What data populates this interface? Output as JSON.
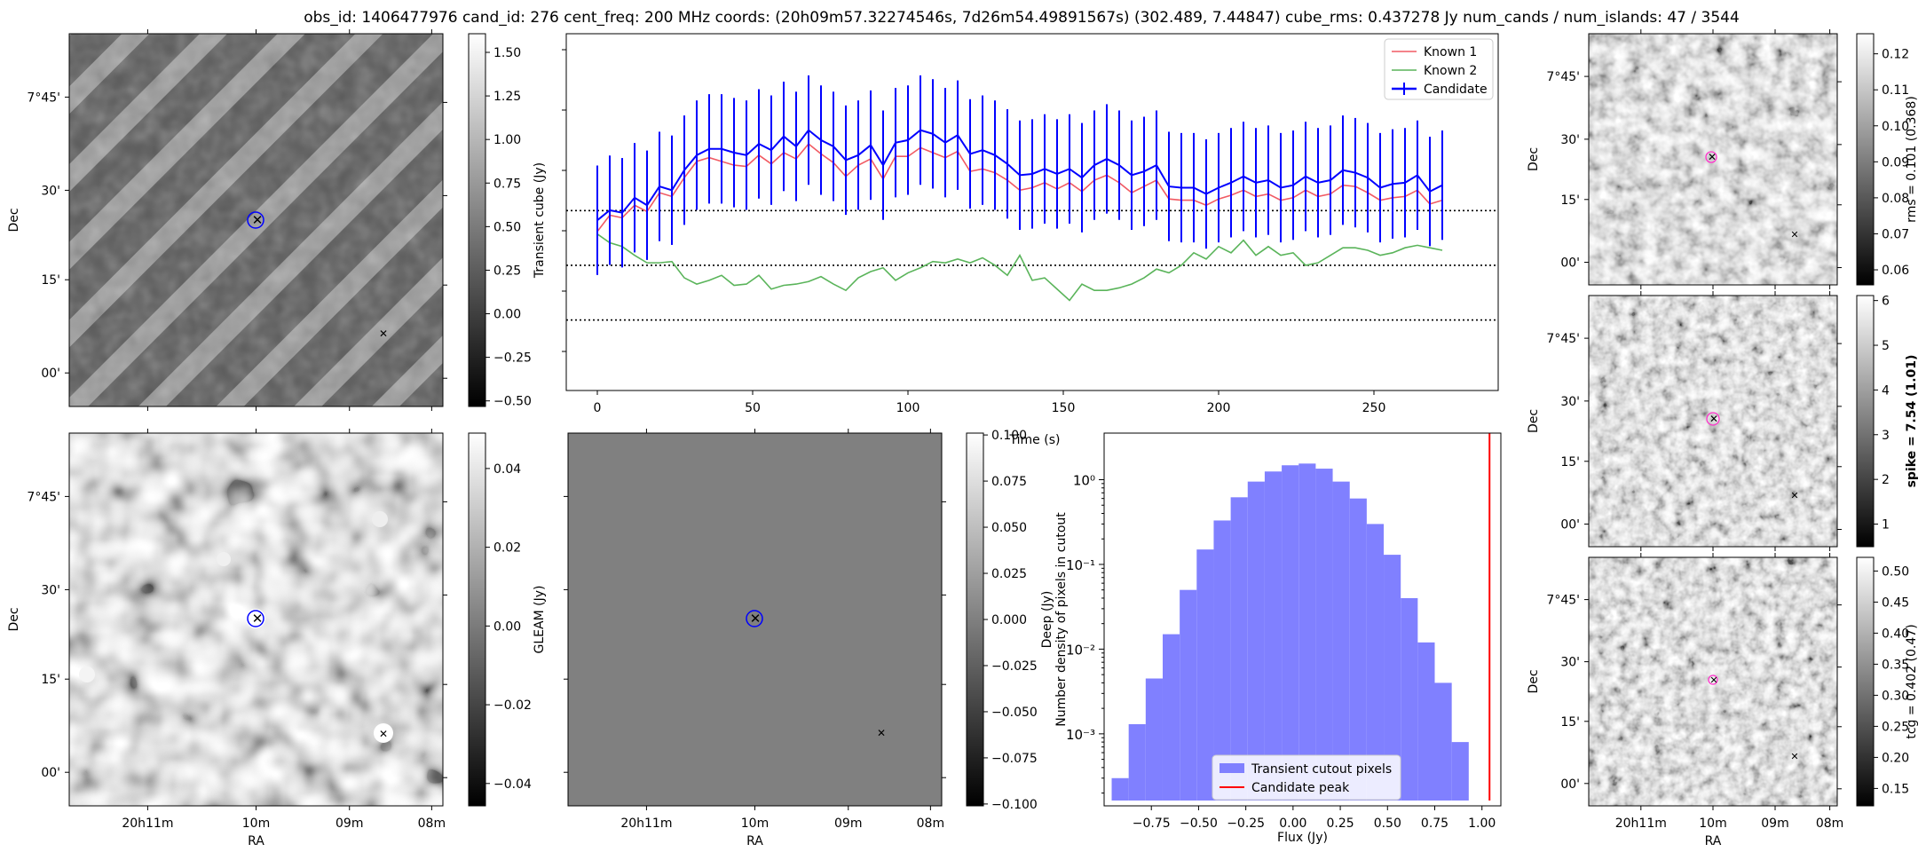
{
  "title": "obs_id: 1406477976 cand_id: 276 cent_freq: 200 MHz coords: (20h09m57.32274546s, 7d26m54.49891567s) (302.489, 7.44847) cube_rms: 0.437278 Jy num_cands / num_islands: 47 / 3544",
  "colors": {
    "candidate": "#0000ff",
    "known1": "#f05a64",
    "known2": "#5ab45a",
    "cand_marker": "#ff0000",
    "green_marker": "#008000",
    "hist": "#8080ff",
    "peak": "#ff0000"
  },
  "sky": {
    "ra_ticks": [
      "20h11m",
      "10m",
      "09m",
      "08m"
    ],
    "ra_label": "RA",
    "dec_ticks": [
      "7°45'",
      "30'",
      "15'",
      "00'"
    ],
    "dec_label": "Dec"
  },
  "panels": {
    "transient_image": {
      "colorbar": {
        "label": "Transient cube (Jy)",
        "ticks": [
          "1.50",
          "1.25",
          "1.00",
          "0.75",
          "0.50",
          "0.25",
          "0.00",
          "−0.25",
          "−0.50"
        ]
      }
    },
    "gleam_image": {
      "colorbar": {
        "label": "GLEAM (Jy)",
        "ticks": [
          "0.04",
          "0.02",
          "0.00",
          "−0.02",
          "−0.04"
        ]
      }
    },
    "deep_image": {
      "colorbar": {
        "label": "Deep (Jy)",
        "ticks": [
          "0.100",
          "0.075",
          "0.050",
          "0.025",
          "0.000",
          "−0.025",
          "−0.050",
          "−0.075",
          "−0.100"
        ]
      }
    },
    "rms_image": {
      "colorbar": {
        "label": "rms = 0.101 (0.368)",
        "ticks": [
          "0.12",
          "0.11",
          "0.10",
          "0.09",
          "0.08",
          "0.07",
          "0.06"
        ]
      }
    },
    "spike_image": {
      "colorbar": {
        "label": "spike = 7.54 (1.01)",
        "ticks": [
          "6",
          "5",
          "4",
          "3",
          "2",
          "1"
        ]
      }
    },
    "tcg_image": {
      "colorbar": {
        "label": "tcg = 0.402 (0.47)",
        "ticks": [
          "0.50",
          "0.45",
          "0.40",
          "0.35",
          "0.30",
          "0.25",
          "0.20",
          "0.15"
        ]
      }
    }
  },
  "chart_data": [
    {
      "type": "line",
      "title": "",
      "xlabel": "Time (s)",
      "ylabel": "",
      "xlim": [
        -10,
        290
      ],
      "ylim": [
        -1.0,
        1.85
      ],
      "xticks": [
        "0",
        "50",
        "100",
        "150",
        "200",
        "250"
      ],
      "legend": {
        "placement": "top-right",
        "entries": [
          "Known 1",
          "Known 2",
          "Candidate"
        ]
      },
      "hlines": [
        0.437,
        0.0,
        -0.437
      ],
      "series": [
        {
          "name": "Candidate",
          "x_start": 0,
          "x_step": 4,
          "error": 0.437,
          "values": [
            0.36,
            0.44,
            0.42,
            0.54,
            0.48,
            0.63,
            0.6,
            0.76,
            0.88,
            0.93,
            0.93,
            0.9,
            0.88,
            0.97,
            0.92,
            1.03,
            0.95,
            1.08,
            1.0,
            0.95,
            0.84,
            0.88,
            0.96,
            0.8,
            0.98,
            1.0,
            1.08,
            1.05,
            0.98,
            1.04,
            0.89,
            0.92,
            0.88,
            0.81,
            0.72,
            0.73,
            0.77,
            0.73,
            0.77,
            0.7,
            0.8,
            0.85,
            0.8,
            0.72,
            0.75,
            0.8,
            0.63,
            0.62,
            0.62,
            0.57,
            0.62,
            0.66,
            0.71,
            0.66,
            0.68,
            0.62,
            0.64,
            0.71,
            0.66,
            0.68,
            0.76,
            0.74,
            0.7,
            0.62,
            0.65,
            0.66,
            0.72,
            0.59,
            0.64
          ]
        },
        {
          "name": "Known 1",
          "x_start": 0,
          "x_step": 4,
          "values": [
            0.27,
            0.4,
            0.38,
            0.48,
            0.43,
            0.58,
            0.55,
            0.7,
            0.83,
            0.86,
            0.83,
            0.8,
            0.79,
            0.88,
            0.81,
            0.9,
            0.85,
            0.97,
            0.89,
            0.82,
            0.71,
            0.8,
            0.85,
            0.69,
            0.87,
            0.87,
            0.94,
            0.9,
            0.86,
            0.91,
            0.75,
            0.77,
            0.74,
            0.68,
            0.6,
            0.62,
            0.66,
            0.61,
            0.66,
            0.59,
            0.68,
            0.72,
            0.66,
            0.58,
            0.63,
            0.68,
            0.53,
            0.52,
            0.52,
            0.48,
            0.53,
            0.56,
            0.6,
            0.55,
            0.57,
            0.52,
            0.54,
            0.6,
            0.55,
            0.57,
            0.64,
            0.63,
            0.58,
            0.52,
            0.54,
            0.55,
            0.6,
            0.49,
            0.52
          ]
        },
        {
          "name": "Known 2",
          "x_start": 0,
          "x_step": 4,
          "values": [
            0.25,
            0.18,
            0.15,
            0.08,
            0.02,
            0.02,
            0.03,
            -0.1,
            -0.15,
            -0.12,
            -0.08,
            -0.16,
            -0.15,
            -0.08,
            -0.19,
            -0.16,
            -0.15,
            -0.13,
            -0.09,
            -0.15,
            -0.2,
            -0.1,
            -0.05,
            -0.02,
            -0.12,
            -0.06,
            -0.02,
            0.03,
            0.02,
            0.05,
            0.02,
            0.06,
            0.0,
            -0.08,
            0.08,
            -0.12,
            -0.1,
            -0.19,
            -0.28,
            -0.15,
            -0.2,
            -0.2,
            -0.18,
            -0.15,
            -0.1,
            -0.03,
            -0.06,
            0.0,
            0.1,
            0.05,
            0.15,
            0.1,
            0.2,
            0.08,
            0.15,
            0.08,
            0.1,
            0.0,
            0.02,
            0.08,
            0.14,
            0.14,
            0.12,
            0.08,
            0.1,
            0.14,
            0.16,
            0.14,
            0.12
          ]
        }
      ]
    },
    {
      "type": "bar",
      "title": "",
      "xlabel": "Flux (Jy)",
      "ylabel": "Number density of pixels in cutout",
      "xlim": [
        -1.0,
        1.1
      ],
      "ylim_log10": [
        -3.85,
        0.55
      ],
      "xticks": [
        "−0.75",
        "−0.50",
        "−0.25",
        "0.00",
        "0.25",
        "0.50",
        "0.75",
        "1.00"
      ],
      "yticks": [
        "10⁰",
        "10⁻¹",
        "10⁻²",
        "10⁻³"
      ],
      "legend": {
        "placement": "bottom-center",
        "entries": [
          "Transient cutout pixels",
          "Candidate peak"
        ]
      },
      "bin_edges": [
        -0.96,
        -0.87,
        -0.78,
        -0.69,
        -0.6,
        -0.51,
        -0.42,
        -0.33,
        -0.24,
        -0.15,
        -0.06,
        0.03,
        0.12,
        0.21,
        0.3,
        0.39,
        0.48,
        0.57,
        0.66,
        0.75,
        0.84,
        0.93,
        1.02
      ],
      "values": [
        0.0003,
        0.0013,
        0.0045,
        0.015,
        0.05,
        0.15,
        0.33,
        0.62,
        0.95,
        1.25,
        1.48,
        1.55,
        1.35,
        0.95,
        0.6,
        0.3,
        0.13,
        0.04,
        0.012,
        0.004,
        0.0008,
        0.00015
      ],
      "peak": 1.04
    }
  ]
}
